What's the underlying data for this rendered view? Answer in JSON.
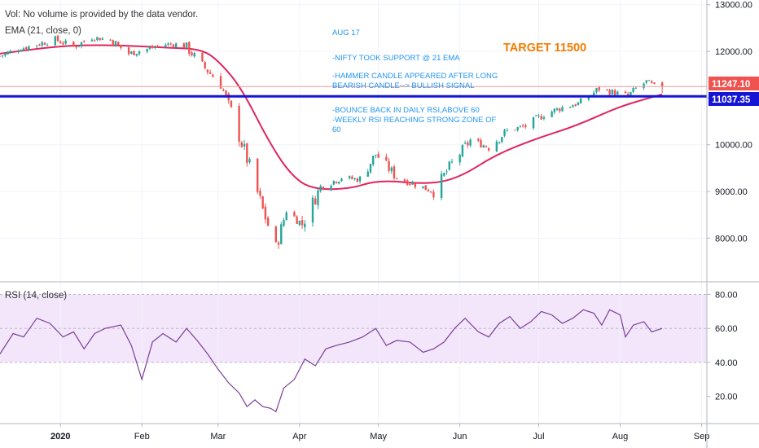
{
  "header": {
    "vol_note": "Vol: No volume is provided by the data vendor.",
    "ema_label": "EMA (21, close, 0)",
    "rsi_label": "RSI (14, close)"
  },
  "annotations": {
    "lines": [
      "AUG 17",
      "",
      "-NIFTY TOOK SUPPORT @ 21 EMA",
      "",
      "-HAMMER CANDLE APPEARED AFTER LONG",
      "BEARISH CANDLE--> BULLISH SIGNAL",
      "",
      "-BOUNCE BACK IN DAILY RSI,ABOVE 60",
      "-WEEKLY RSI REACHING STRONG ZONE OF",
      "60"
    ],
    "target": "TARGET 11500"
  },
  "price_tags": {
    "last": "11247.10",
    "support": "11037.35"
  },
  "colors": {
    "up": "#26a69a",
    "down": "#ef5350",
    "ema": "#e0245e",
    "support_line": "#1515d6",
    "rsi_line": "#7b3f98",
    "rsi_band": "#f3e6fb",
    "annotation": "#2196f3",
    "target": "#f57c00",
    "last_tag": "#ef5350",
    "support_tag": "#1515d6"
  },
  "chart_data": [
    {
      "type": "candlestick",
      "title": "",
      "y_axis_ticks": [
        8000,
        9000,
        10000,
        11000,
        12000,
        13000
      ],
      "y_tick_labels": [
        "8000.00",
        "9000.00",
        "10000.00",
        "11000.00",
        "12000.00",
        "13000.00"
      ],
      "ylim": [
        7100,
        13100
      ],
      "x_tick_labels": [
        "2020",
        "Feb",
        "Mar",
        "Apr",
        "May",
        "Jun",
        "Jul",
        "Aug",
        "Sep"
      ],
      "x_ticks": [
        "2020-01-01",
        "2020-02-01",
        "2020-03-01",
        "2020-04-01",
        "2020-05-01",
        "2020-06-01",
        "2020-07-01",
        "2020-08-01",
        "2020-09-01"
      ],
      "x_range": [
        "2019-12-09",
        "2020-09-03"
      ],
      "horizontal_line": 11037.35,
      "last_price": 11247.1,
      "anchors": [
        {
          "d": "2019-12-09",
          "c": 11900
        },
        {
          "d": "2019-12-16",
          "c": 12050
        },
        {
          "d": "2019-12-23",
          "c": 12150
        },
        {
          "d": "2019-12-30",
          "c": 12250
        },
        {
          "d": "2020-01-06",
          "c": 12100
        },
        {
          "d": "2020-01-13",
          "c": 12300
        },
        {
          "d": "2020-01-20",
          "c": 12250
        },
        {
          "d": "2020-01-27",
          "c": 11950
        },
        {
          "d": "2020-02-03",
          "c": 12050
        },
        {
          "d": "2020-02-10",
          "c": 12150
        },
        {
          "d": "2020-02-17",
          "c": 12150
        },
        {
          "d": "2020-02-24",
          "c": 11700
        },
        {
          "d": "2020-03-02",
          "c": 11300
        },
        {
          "d": "2020-03-06",
          "c": 10700
        },
        {
          "d": "2020-03-12",
          "c": 9700
        },
        {
          "d": "2020-03-18",
          "c": 8600
        },
        {
          "d": "2020-03-23",
          "c": 7800
        },
        {
          "d": "2020-03-27",
          "c": 8600
        },
        {
          "d": "2020-04-02",
          "c": 8300
        },
        {
          "d": "2020-04-09",
          "c": 9100
        },
        {
          "d": "2020-04-17",
          "c": 9300
        },
        {
          "d": "2020-04-24",
          "c": 9250
        },
        {
          "d": "2020-04-30",
          "c": 9800
        },
        {
          "d": "2020-05-08",
          "c": 9300
        },
        {
          "d": "2020-05-15",
          "c": 9150
        },
        {
          "d": "2020-05-22",
          "c": 9000
        },
        {
          "d": "2020-05-29",
          "c": 9600
        },
        {
          "d": "2020-06-05",
          "c": 10100
        },
        {
          "d": "2020-06-12",
          "c": 9950
        },
        {
          "d": "2020-06-19",
          "c": 10300
        },
        {
          "d": "2020-06-26",
          "c": 10400
        },
        {
          "d": "2020-07-03",
          "c": 10650
        },
        {
          "d": "2020-07-10",
          "c": 10800
        },
        {
          "d": "2020-07-17",
          "c": 10900
        },
        {
          "d": "2020-07-24",
          "c": 11200
        },
        {
          "d": "2020-07-31",
          "c": 11100
        },
        {
          "d": "2020-08-04",
          "c": 11050
        },
        {
          "d": "2020-08-07",
          "c": 11200
        },
        {
          "d": "2020-08-11",
          "c": 11350
        },
        {
          "d": "2020-08-14",
          "c": 11250
        },
        {
          "d": "2020-08-17",
          "c": 11247
        }
      ],
      "ema": [
        {
          "d": "2019-12-09",
          "v": 11950
        },
        {
          "d": "2020-01-01",
          "v": 12120
        },
        {
          "d": "2020-01-20",
          "v": 12140
        },
        {
          "d": "2020-02-10",
          "v": 12080
        },
        {
          "d": "2020-02-24",
          "v": 12050
        },
        {
          "d": "2020-03-02",
          "v": 11750
        },
        {
          "d": "2020-03-10",
          "v": 11200
        },
        {
          "d": "2020-03-20",
          "v": 10100
        },
        {
          "d": "2020-03-28",
          "v": 9400
        },
        {
          "d": "2020-04-05",
          "v": 9050
        },
        {
          "d": "2020-04-20",
          "v": 9050
        },
        {
          "d": "2020-05-01",
          "v": 9250
        },
        {
          "d": "2020-05-20",
          "v": 9150
        },
        {
          "d": "2020-06-01",
          "v": 9300
        },
        {
          "d": "2020-06-15",
          "v": 9800
        },
        {
          "d": "2020-07-01",
          "v": 10150
        },
        {
          "d": "2020-07-15",
          "v": 10400
        },
        {
          "d": "2020-07-31",
          "v": 10800
        },
        {
          "d": "2020-08-10",
          "v": 10970
        },
        {
          "d": "2020-08-17",
          "v": 11080
        }
      ]
    },
    {
      "type": "line",
      "title": "RSI (14, close)",
      "y_axis_ticks": [
        20,
        40,
        60,
        80
      ],
      "y_tick_labels": [
        "20.00",
        "40.00",
        "60.00",
        "80.00"
      ],
      "ylim": [
        5,
        86
      ],
      "band": [
        40,
        80
      ],
      "mid_line": 60,
      "series": [
        {
          "values": [
            {
              "d": "2019-12-09",
              "v": 45
            },
            {
              "d": "2019-12-14",
              "v": 57
            },
            {
              "d": "2019-12-18",
              "v": 55
            },
            {
              "d": "2019-12-23",
              "v": 66
            },
            {
              "d": "2019-12-28",
              "v": 63
            },
            {
              "d": "2020-01-02",
              "v": 55
            },
            {
              "d": "2020-01-06",
              "v": 58
            },
            {
              "d": "2020-01-10",
              "v": 48
            },
            {
              "d": "2020-01-14",
              "v": 57
            },
            {
              "d": "2020-01-18",
              "v": 60
            },
            {
              "d": "2020-01-24",
              "v": 62
            },
            {
              "d": "2020-01-28",
              "v": 50
            },
            {
              "d": "2020-02-01",
              "v": 30
            },
            {
              "d": "2020-02-05",
              "v": 52
            },
            {
              "d": "2020-02-09",
              "v": 57
            },
            {
              "d": "2020-02-14",
              "v": 52
            },
            {
              "d": "2020-02-18",
              "v": 60
            },
            {
              "d": "2020-02-22",
              "v": 53
            },
            {
              "d": "2020-02-26",
              "v": 45
            },
            {
              "d": "2020-03-01",
              "v": 36
            },
            {
              "d": "2020-03-05",
              "v": 28
            },
            {
              "d": "2020-03-09",
              "v": 22
            },
            {
              "d": "2020-03-12",
              "v": 14
            },
            {
              "d": "2020-03-15",
              "v": 18
            },
            {
              "d": "2020-03-18",
              "v": 14
            },
            {
              "d": "2020-03-21",
              "v": 13
            },
            {
              "d": "2020-03-23",
              "v": 11
            },
            {
              "d": "2020-03-26",
              "v": 25
            },
            {
              "d": "2020-03-30",
              "v": 30
            },
            {
              "d": "2020-04-03",
              "v": 42
            },
            {
              "d": "2020-04-07",
              "v": 38
            },
            {
              "d": "2020-04-11",
              "v": 48
            },
            {
              "d": "2020-04-15",
              "v": 50
            },
            {
              "d": "2020-04-20",
              "v": 52
            },
            {
              "d": "2020-04-25",
              "v": 55
            },
            {
              "d": "2020-04-30",
              "v": 60
            },
            {
              "d": "2020-05-04",
              "v": 50
            },
            {
              "d": "2020-05-08",
              "v": 53
            },
            {
              "d": "2020-05-13",
              "v": 52
            },
            {
              "d": "2020-05-18",
              "v": 46
            },
            {
              "d": "2020-05-22",
              "v": 48
            },
            {
              "d": "2020-05-26",
              "v": 52
            },
            {
              "d": "2020-05-30",
              "v": 60
            },
            {
              "d": "2020-06-03",
              "v": 66
            },
            {
              "d": "2020-06-08",
              "v": 58
            },
            {
              "d": "2020-06-12",
              "v": 55
            },
            {
              "d": "2020-06-16",
              "v": 63
            },
            {
              "d": "2020-06-20",
              "v": 67
            },
            {
              "d": "2020-06-24",
              "v": 60
            },
            {
              "d": "2020-06-28",
              "v": 64
            },
            {
              "d": "2020-07-02",
              "v": 70
            },
            {
              "d": "2020-07-06",
              "v": 68
            },
            {
              "d": "2020-07-10",
              "v": 63
            },
            {
              "d": "2020-07-14",
              "v": 66
            },
            {
              "d": "2020-07-18",
              "v": 71
            },
            {
              "d": "2020-07-22",
              "v": 69
            },
            {
              "d": "2020-07-25",
              "v": 62
            },
            {
              "d": "2020-07-28",
              "v": 71
            },
            {
              "d": "2020-08-01",
              "v": 68
            },
            {
              "d": "2020-08-03",
              "v": 55
            },
            {
              "d": "2020-08-06",
              "v": 62
            },
            {
              "d": "2020-08-10",
              "v": 64
            },
            {
              "d": "2020-08-13",
              "v": 58
            },
            {
              "d": "2020-08-17",
              "v": 60
            }
          ]
        }
      ]
    }
  ]
}
